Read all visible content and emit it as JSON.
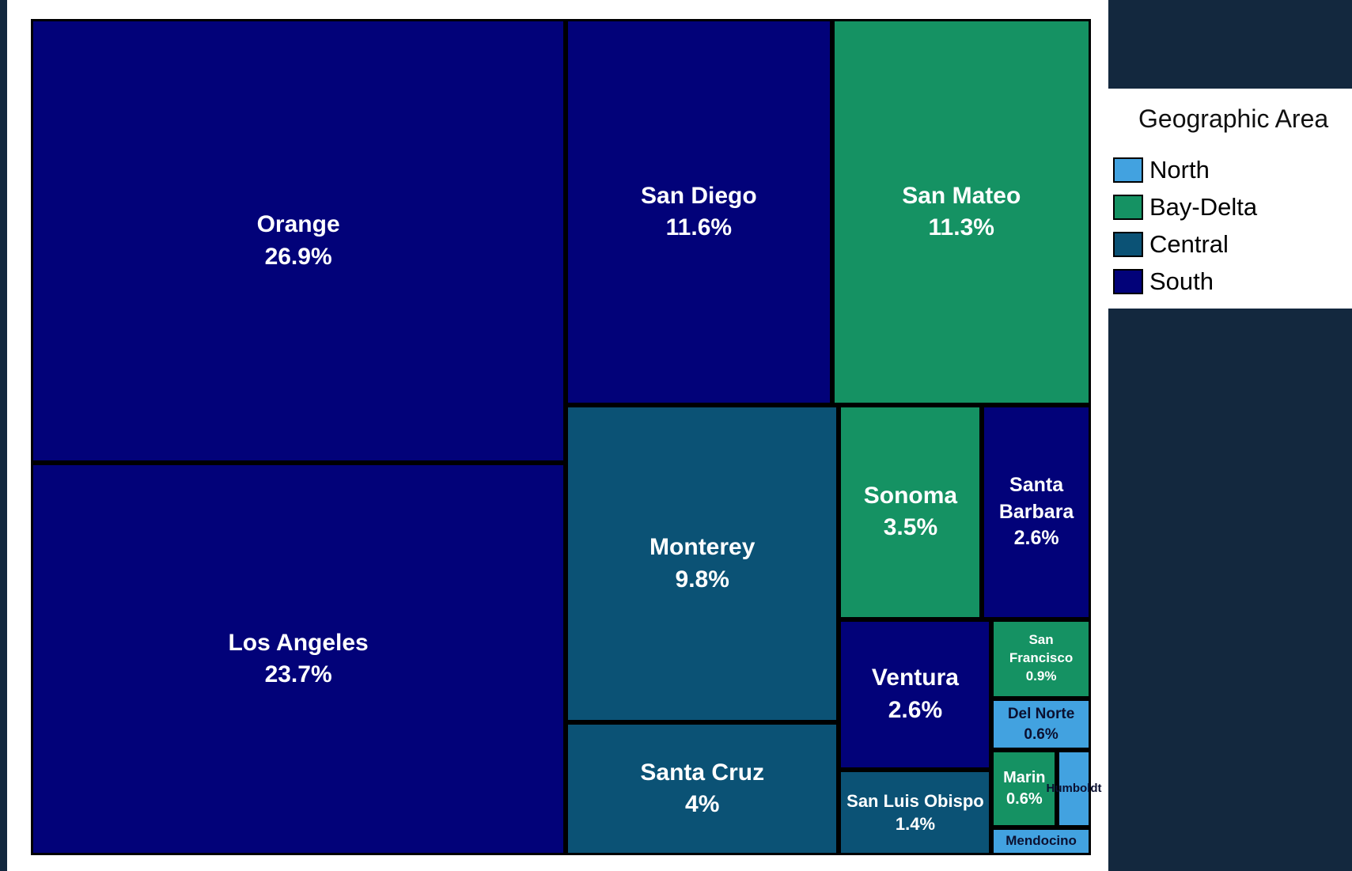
{
  "chart_data": {
    "type": "treemap",
    "categories": [
      "Orange",
      "Los Angeles",
      "San Diego",
      "San Mateo",
      "Monterey",
      "Santa Cruz",
      "Sonoma",
      "Santa Barbara",
      "Ventura",
      "San Luis Obispo",
      "San Francisco",
      "Del Norte",
      "Marin",
      "Humboldt",
      "Mendocino"
    ],
    "values": [
      26.9,
      23.7,
      11.6,
      11.3,
      9.8,
      4,
      3.5,
      2.6,
      2.6,
      1.4,
      0.9,
      0.6,
      0.6,
      0.3,
      0.3
    ],
    "value_labels": [
      "26.9%",
      "23.7%",
      "11.6%",
      "11.3%",
      "9.8%",
      "4%",
      "3.5%",
      "2.6%",
      "2.6%",
      "1.4%",
      "0.9%",
      "0.6%",
      "0.6%",
      null,
      null
    ],
    "groups": [
      "South",
      "South",
      "South",
      "Bay-Delta",
      "Central",
      "Central",
      "Bay-Delta",
      "South",
      "South",
      "Central",
      "Bay-Delta",
      "North",
      "Bay-Delta",
      "North",
      "North"
    ],
    "legend_title": "Geographic Area",
    "series": [
      {
        "name": "North",
        "color": "#42a2e0"
      },
      {
        "name": "Bay-Delta",
        "color": "#159263"
      },
      {
        "name": "Central",
        "color": "#0b5275"
      },
      {
        "name": "South",
        "color": "#020279"
      }
    ]
  }
}
